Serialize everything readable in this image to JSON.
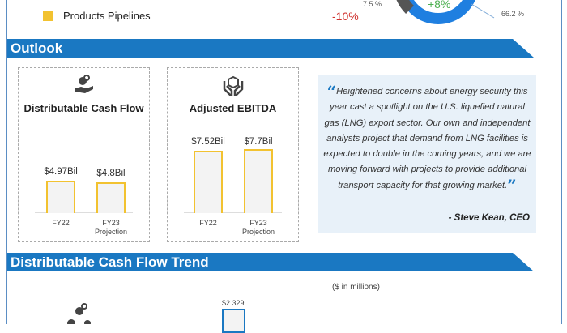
{
  "legend_row": {
    "label": "Products Pipelines",
    "value": "-10%",
    "swatch_color": "#f2c230",
    "value_color": "#d0312d"
  },
  "donut": {
    "center_label": "+8%",
    "labels": [
      "7.5 %",
      "66.2 %"
    ],
    "colors": {
      "main": "#1f7fe0",
      "gray": "#555555",
      "center": "#4caf50"
    }
  },
  "outlook": {
    "title": "Outlook",
    "quote": "Heightened concerns about energy security this year cast a spotlight on the U.S. liquefied natural gas (LNG) export sector. Our own and independent analysts project that demand from LNG facilities is expected to double in the coming years, and we are moving forward with projects to provide additional transport capacity for that growing market.",
    "quote_author": "- Steve Kean, CEO"
  },
  "trend": {
    "title": "Distributable Cash Flow Trend",
    "unit_note": "($ in millions)",
    "first_bar_label": "$2.329"
  },
  "chart_data": [
    {
      "type": "bar",
      "title": "Distributable Cash Flow",
      "icon": "hand-coin-icon",
      "categories": [
        "FY22",
        "FY23 Projection"
      ],
      "values": [
        4.97,
        4.8
      ],
      "value_labels": [
        "$4.97Bil",
        "$4.8Bil"
      ],
      "unit": "Bil",
      "bar_color": "#f2c230"
    },
    {
      "type": "bar",
      "title": "Adjusted EBITDA",
      "icon": "hands-box-icon",
      "categories": [
        "FY22",
        "FY23 Projection"
      ],
      "values": [
        7.52,
        7.7
      ],
      "value_labels": [
        "$7.52Bil",
        "$7.7Bil"
      ],
      "unit": "Bil",
      "bar_color": "#f2c230"
    }
  ]
}
